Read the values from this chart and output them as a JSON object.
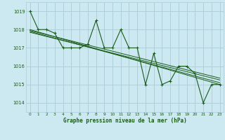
{
  "title": "Graphe pression niveau de la mer (hPa)",
  "background_color": "#cce8f0",
  "grid_color": "#aaccd8",
  "line_color": "#1a5c1a",
  "xlim": [
    -0.5,
    23.5
  ],
  "ylim": [
    1013.5,
    1019.5
  ],
  "yticks": [
    1014,
    1015,
    1016,
    1017,
    1018,
    1019
  ],
  "xticks": [
    0,
    1,
    2,
    3,
    4,
    5,
    6,
    7,
    8,
    9,
    10,
    11,
    12,
    13,
    14,
    15,
    16,
    17,
    18,
    19,
    20,
    21,
    22,
    23
  ],
  "series_main": {
    "x": [
      0,
      1,
      2,
      3,
      4,
      5,
      6,
      7,
      8,
      9,
      10,
      11,
      12,
      13,
      14,
      15,
      16,
      17,
      18,
      19,
      20,
      21,
      22,
      23
    ],
    "y": [
      1019.0,
      1018.0,
      1018.0,
      1017.8,
      1017.0,
      1017.0,
      1017.0,
      1017.2,
      1018.5,
      1017.0,
      1017.0,
      1018.0,
      1017.0,
      1017.0,
      1015.0,
      1016.7,
      1015.0,
      1015.2,
      1016.0,
      1016.0,
      1015.6,
      1014.0,
      1015.0,
      1015.0
    ]
  },
  "series_trend": [
    {
      "x": [
        0,
        23
      ],
      "y": [
        1018.0,
        1015.0
      ]
    },
    {
      "x": [
        0,
        23
      ],
      "y": [
        1017.9,
        1015.1
      ]
    },
    {
      "x": [
        0,
        23
      ],
      "y": [
        1017.85,
        1015.25
      ]
    },
    {
      "x": [
        0,
        23
      ],
      "y": [
        1017.95,
        1015.35
      ]
    }
  ]
}
